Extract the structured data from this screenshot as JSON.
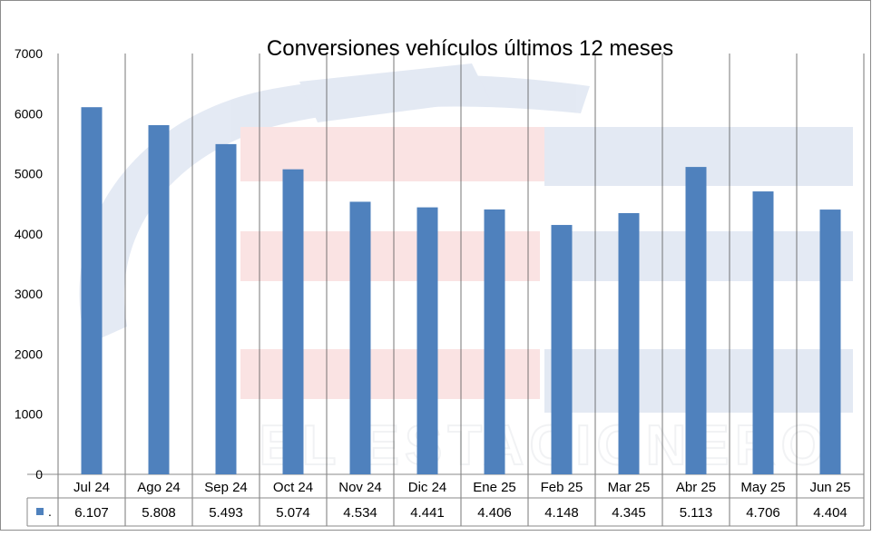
{
  "watermark": {
    "text": "EL ESTACIONERO",
    "colors": {
      "blue": "#2e5aa8",
      "red": "#e0302e",
      "gray": "#9aa3ad"
    }
  },
  "colors": {
    "bar": "#4f81bd",
    "gridline": "#555555",
    "axis": "#888888",
    "text": "#000000"
  },
  "chart_data": {
    "type": "bar",
    "title": "Conversiones vehículos últimos 12 meses",
    "categories": [
      "Jul 24",
      "Ago 24",
      "Sep 24",
      "Oct 24",
      "Nov 24",
      "Dic 24",
      "Ene 25",
      "Feb 25",
      "Mar 25",
      "Abr 25",
      "May 25",
      "Jun 25"
    ],
    "series": [
      {
        "name": ".",
        "values": [
          6107,
          5808,
          5493,
          5074,
          4534,
          4441,
          4406,
          4148,
          4345,
          5113,
          4706,
          4404
        ],
        "labels": [
          "6.107",
          "5.808",
          "5.493",
          "5.074",
          "4.534",
          "4.441",
          "4.406",
          "4.148",
          "4.345",
          "5.113",
          "4.706",
          "4.404"
        ]
      }
    ],
    "ylim": [
      0,
      7000
    ],
    "yticks": [
      "0",
      "1000",
      "2000",
      "3000",
      "4000",
      "5000",
      "6000",
      "7000"
    ],
    "xlabel": "",
    "ylabel": "",
    "grid": "vertical category dividers",
    "legend": "data table below plot"
  }
}
